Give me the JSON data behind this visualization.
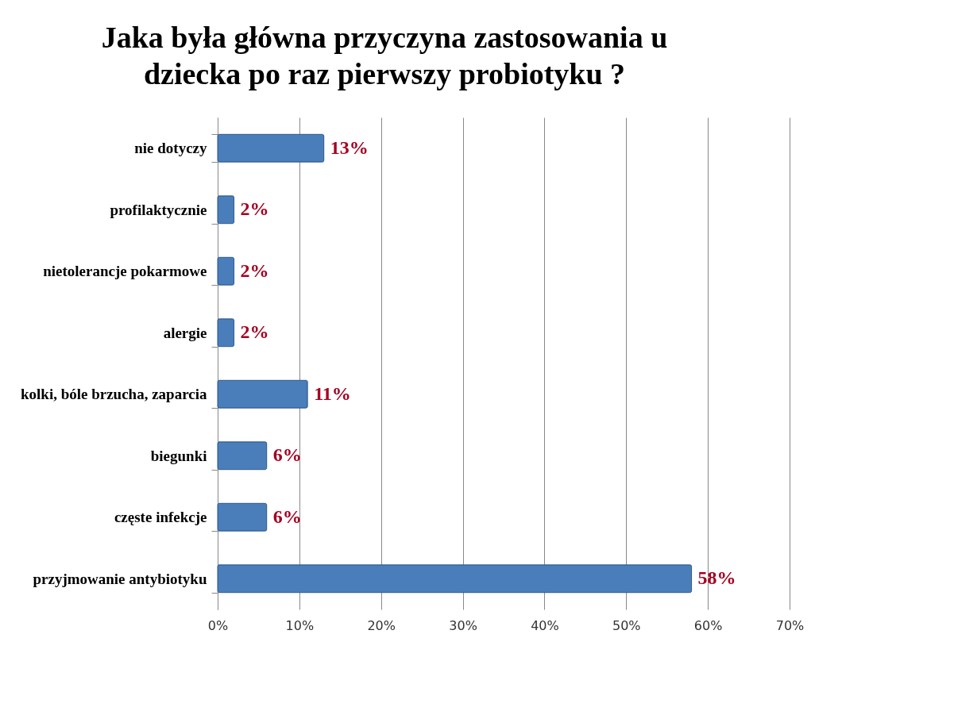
{
  "chart_data": {
    "type": "bar",
    "orientation": "horizontal",
    "title": "Jaka była główna przyczyna zastosowania u dziecka po raz pierwszy probiotyku ?",
    "categories": [
      "nie dotyczy",
      "profilaktycznie",
      "nietolerancje pokarmowe",
      "alergie",
      "kolki, bóle brzucha, zaparcia",
      "biegunki",
      "częste infekcje",
      "przyjmowanie antybiotyku"
    ],
    "values": [
      13,
      2,
      2,
      2,
      11,
      6,
      6,
      58
    ],
    "value_labels": [
      "13%",
      "2%",
      "2%",
      "2%",
      "11%",
      "6%",
      "6%",
      "58%"
    ],
    "color": "#4a7ebb",
    "xlim": [
      0,
      70
    ],
    "xticks": [
      {
        "value": 0,
        "label": "0%"
      },
      {
        "value": 10,
        "label": "10%"
      },
      {
        "value": 20,
        "label": "20%"
      },
      {
        "value": 30,
        "label": "30%"
      },
      {
        "value": 40,
        "label": "40%"
      },
      {
        "value": 50,
        "label": "50%"
      },
      {
        "value": 60,
        "label": "60%"
      },
      {
        "value": 70,
        "label": "70%"
      }
    ],
    "grid": "x"
  }
}
